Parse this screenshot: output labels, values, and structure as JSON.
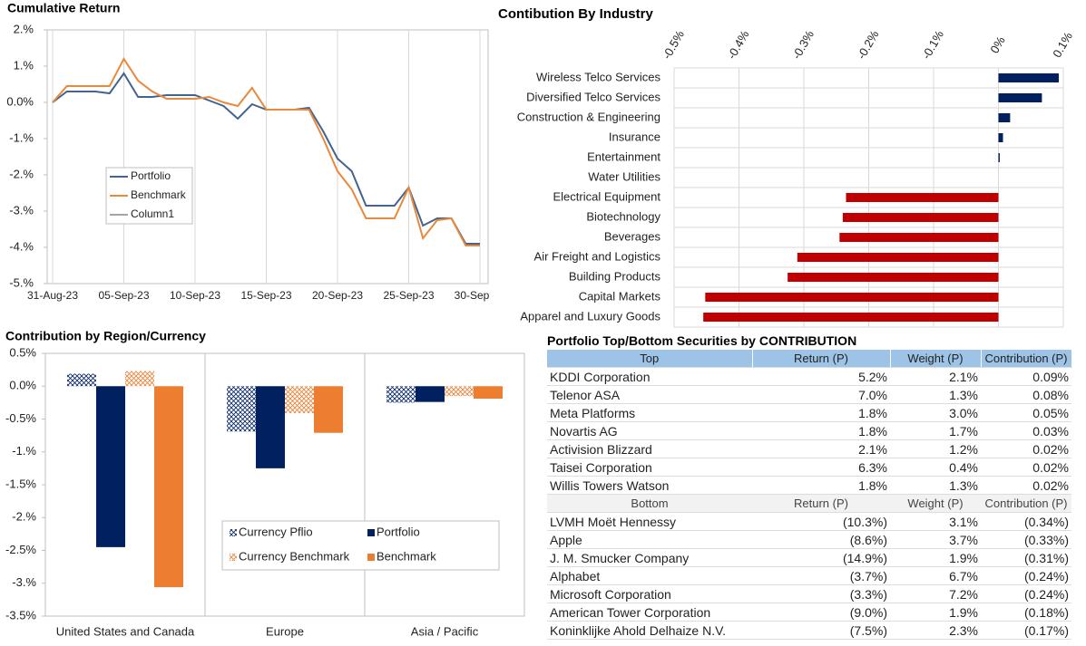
{
  "chart_data": [
    {
      "type": "line",
      "title": "Cumulative Return",
      "x": [
        "2023-08-31",
        "2023-09-01",
        "2023-09-02",
        "2023-09-03",
        "2023-09-04",
        "2023-09-05",
        "2023-09-06",
        "2023-09-07",
        "2023-09-08",
        "2023-09-09",
        "2023-09-10",
        "2023-09-11",
        "2023-09-12",
        "2023-09-13",
        "2023-09-14",
        "2023-09-15",
        "2023-09-16",
        "2023-09-17",
        "2023-09-18",
        "2023-09-19",
        "2023-09-20",
        "2023-09-21",
        "2023-09-22",
        "2023-09-23",
        "2023-09-24",
        "2023-09-25",
        "2023-09-26",
        "2023-09-27",
        "2023-09-28",
        "2023-09-29",
        "2023-09-30"
      ],
      "series": [
        {
          "name": "Portfolio",
          "color": "#44638f",
          "values": [
            0,
            0.3,
            0.3,
            0.3,
            0.25,
            0.8,
            0.15,
            0.15,
            0.2,
            0.2,
            0.2,
            0.05,
            -0.1,
            -0.45,
            -0.05,
            -0.2,
            -0.2,
            -0.2,
            -0.15,
            -0.8,
            -1.55,
            -1.9,
            -2.85,
            -2.85,
            -2.85,
            -2.35,
            -3.4,
            -3.2,
            -3.2,
            -3.9,
            -3.9
          ]
        },
        {
          "name": "Benchmark",
          "color": "#e8893c",
          "values": [
            0,
            0.45,
            0.45,
            0.45,
            0.45,
            1.2,
            0.6,
            0.3,
            0.1,
            0.1,
            0.1,
            0.15,
            0,
            -0.1,
            0.4,
            -0.2,
            -0.2,
            -0.2,
            -0.2,
            -1.0,
            -1.9,
            -2.4,
            -3.2,
            -3.2,
            -3.2,
            -2.35,
            -3.75,
            -3.25,
            -3.2,
            -3.95,
            -3.95
          ]
        },
        {
          "name": "Column1",
          "color": "#a5a5a5",
          "values": [
            null,
            null,
            null,
            null,
            null,
            null,
            null,
            null,
            null,
            null,
            null,
            null,
            null,
            null,
            null,
            null,
            null,
            null,
            null,
            null,
            null,
            null,
            null,
            null,
            null,
            null,
            null,
            null,
            null,
            null,
            null
          ]
        }
      ],
      "xlim": [
        "2023-08-31",
        "2023-09-30"
      ],
      "xticks": [
        {
          "value": "2023-08-31",
          "label": "31-Aug-23"
        },
        {
          "value": "2023-09-05",
          "label": "05-Sep-23"
        },
        {
          "value": "2023-09-10",
          "label": "10-Sep-23"
        },
        {
          "value": "2023-09-15",
          "label": "15-Sep-23"
        },
        {
          "value": "2023-09-20",
          "label": "20-Sep-23"
        },
        {
          "value": "2023-09-25",
          "label": "25-Sep-23"
        },
        {
          "value": "2023-09-30",
          "label": "30-Sep"
        }
      ],
      "ylim": [
        -5,
        2
      ],
      "yticks": [
        {
          "value": 2,
          "label": "2.%"
        },
        {
          "value": 1,
          "label": "1.%"
        },
        {
          "value": 0,
          "label": "0.0%"
        },
        {
          "value": -1,
          "label": "-1.%"
        },
        {
          "value": -2,
          "label": "-2.%"
        },
        {
          "value": -3,
          "label": "-3.%"
        },
        {
          "value": -4,
          "label": "-4.%"
        },
        {
          "value": -5,
          "label": "-5.%"
        }
      ],
      "grid": "x",
      "legend": "center-left"
    },
    {
      "type": "hbar",
      "title": "Contibution By Industry",
      "categories": [
        "Wireless Telco Services",
        "Diversified Telco Services",
        "Construction & Engineering",
        "Insurance",
        "Entertainment",
        "Water Utilities",
        "Electrical Equipment",
        "Biotechnology",
        "Beverages",
        "Air Freight and Logistics",
        "Building Products",
        "Capital Markets",
        "Apparel and Luxury Goods"
      ],
      "values": [
        0.093,
        0.067,
        0.018,
        0.007,
        0.002,
        0,
        -0.235,
        -0.24,
        -0.245,
        -0.31,
        -0.325,
        -0.452,
        -0.455
      ],
      "color_positive": "#002060",
      "color_negative": "#c00000",
      "xlim": [
        -0.5,
        0.1
      ],
      "xticks": [
        {
          "value": -0.5,
          "label": "-0.5%"
        },
        {
          "value": -0.4,
          "label": "-0.4%"
        },
        {
          "value": -0.3,
          "label": "-0.3%"
        },
        {
          "value": -0.2,
          "label": "-0.2%"
        },
        {
          "value": -0.1,
          "label": "-0.1%"
        },
        {
          "value": 0,
          "label": "0%"
        },
        {
          "value": 0.1,
          "label": "0.1%"
        }
      ],
      "grid": true
    },
    {
      "type": "bar",
      "title": "Contribution by Region/Currency",
      "categories": [
        "United States and Canada",
        "Europe",
        "Asia / Pacific"
      ],
      "series": [
        {
          "name": "Currency Pflio",
          "color": "#002060",
          "pattern": "crosshatch",
          "values": [
            0.19,
            -0.69,
            -0.25
          ]
        },
        {
          "name": "Portfolio",
          "color": "#002060",
          "values": [
            -2.45,
            -1.25,
            -0.24
          ]
        },
        {
          "name": "Currency Benchmark",
          "color": "#ed7d31",
          "pattern": "crosshatch",
          "values": [
            0.23,
            -0.41,
            -0.15
          ]
        },
        {
          "name": "Benchmark",
          "color": "#ed7d31",
          "values": [
            -3.06,
            -0.71,
            -0.19
          ]
        }
      ],
      "ylim": [
        -3.5,
        0.5
      ],
      "yticks": [
        {
          "value": 0.5,
          "label": "0.5%"
        },
        {
          "value": 0,
          "label": "0.0%"
        },
        {
          "value": -0.5,
          "label": "-0.5%"
        },
        {
          "value": -1,
          "label": "-1.%"
        },
        {
          "value": -1.5,
          "label": "-1.5%"
        },
        {
          "value": -2,
          "label": "-2.%"
        },
        {
          "value": -2.5,
          "label": "-2.5%"
        },
        {
          "value": -3,
          "label": "-3.%"
        },
        {
          "value": -3.5,
          "label": "-3.5%"
        }
      ],
      "legend": "bottom-right"
    }
  ],
  "table": {
    "title": "Portfolio Top/Bottom Securities by CONTRIBUTION",
    "top_header": [
      "Top",
      "Return (P)",
      "Weight (P)",
      "Contribution (P)"
    ],
    "top_rows": [
      [
        "KDDI Corporation",
        "5.2%",
        "2.1%",
        "0.09%"
      ],
      [
        "Telenor ASA",
        "7.0%",
        "1.3%",
        "0.08%"
      ],
      [
        "Meta Platforms",
        "1.8%",
        "3.0%",
        "0.05%"
      ],
      [
        "Novartis AG",
        "1.8%",
        "1.7%",
        "0.03%"
      ],
      [
        "Activision Blizzard",
        "2.1%",
        "1.2%",
        "0.02%"
      ],
      [
        "Taisei Corporation",
        "6.3%",
        "0.4%",
        "0.02%"
      ],
      [
        "Willis Towers Watson",
        "1.8%",
        "1.3%",
        "0.02%"
      ]
    ],
    "bottom_header": [
      "Bottom",
      "Return (P)",
      "Weight (P)",
      "Contribution (P)"
    ],
    "bottom_rows": [
      [
        "LVMH Moët Hennessy",
        "(10.3%)",
        "3.1%",
        "(0.34%)"
      ],
      [
        "Apple",
        "(8.6%)",
        "3.7%",
        "(0.33%)"
      ],
      [
        "J. M. Smucker Company",
        "(14.9%)",
        "1.9%",
        "(0.31%)"
      ],
      [
        "Alphabet",
        "(3.7%)",
        "6.7%",
        "(0.24%)"
      ],
      [
        "Microsoft Corporation",
        "(3.3%)",
        "7.2%",
        "(0.24%)"
      ],
      [
        "American Tower Corporation",
        "(9.0%)",
        "1.9%",
        "(0.18%)"
      ],
      [
        "Koninklijke Ahold Delhaize N.V.",
        "(7.5%)",
        "2.3%",
        "(0.17%)"
      ]
    ]
  }
}
